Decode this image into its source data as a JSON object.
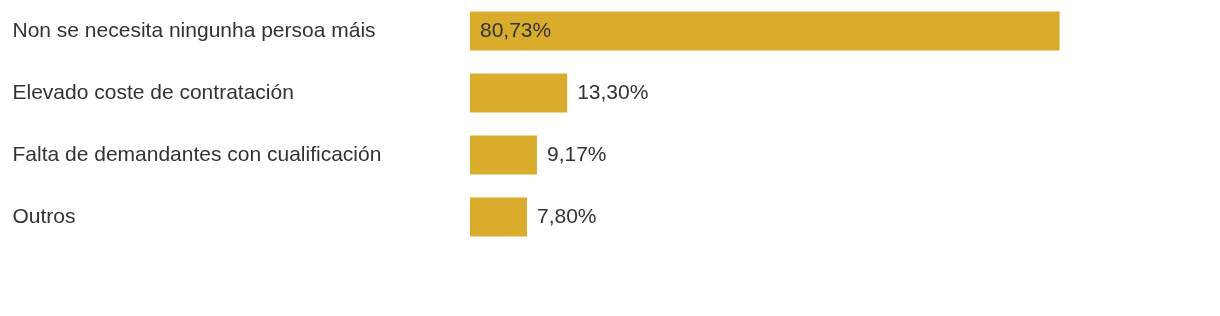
{
  "chart_data": {
    "type": "bar",
    "orientation": "horizontal",
    "categories": [
      "Non se necesita ningunha persoa máis",
      "Elevado coste de contratación",
      "Falta de demandantes con cualificación",
      "Outros"
    ],
    "values": [
      80.73,
      13.3,
      9.17,
      7.8
    ],
    "value_labels": [
      "80,73%",
      "13,30%",
      "9,17%",
      "7,80%"
    ],
    "color": "#d9ac2c"
  }
}
